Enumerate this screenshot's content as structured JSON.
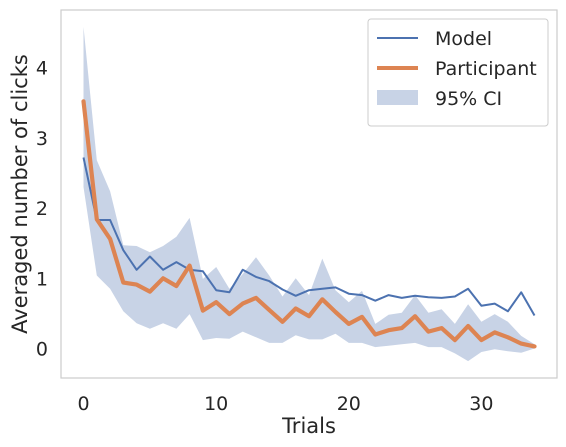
{
  "chart_data": {
    "type": "line",
    "xlabel": "Trials",
    "ylabel": "Averaged number of clicks",
    "xlim": [
      -1.7,
      35.7
    ],
    "ylim": [
      -0.42,
      4.82
    ],
    "xticks": [
      0,
      10,
      20,
      30
    ],
    "yticks": [
      0,
      1,
      2,
      3,
      4
    ],
    "grid": false,
    "legend_position": "top-right",
    "x": [
      0,
      1,
      2,
      3,
      4,
      5,
      6,
      7,
      8,
      9,
      10,
      11,
      12,
      13,
      14,
      15,
      16,
      17,
      18,
      19,
      20,
      21,
      22,
      23,
      24,
      25,
      26,
      27,
      28,
      29,
      30,
      31,
      32,
      33,
      34
    ],
    "series": [
      {
        "name": "Model",
        "type": "line",
        "color": "#4c72b0",
        "values": [
          2.72,
          1.83,
          1.83,
          1.4,
          1.12,
          1.31,
          1.12,
          1.23,
          1.12,
          1.1,
          0.83,
          0.8,
          1.12,
          1.02,
          0.96,
          0.84,
          0.75,
          0.83,
          0.85,
          0.87,
          0.78,
          0.76,
          0.68,
          0.76,
          0.72,
          0.75,
          0.73,
          0.72,
          0.74,
          0.85,
          0.61,
          0.64,
          0.53,
          0.8,
          0.47
        ]
      },
      {
        "name": "Participant",
        "type": "line",
        "color": "#dd8452",
        "values": [
          3.52,
          1.84,
          1.56,
          0.94,
          0.91,
          0.81,
          1.0,
          0.89,
          1.18,
          0.54,
          0.66,
          0.49,
          0.64,
          0.72,
          0.55,
          0.38,
          0.57,
          0.46,
          0.7,
          0.52,
          0.35,
          0.45,
          0.2,
          0.26,
          0.29,
          0.46,
          0.24,
          0.29,
          0.12,
          0.32,
          0.12,
          0.23,
          0.16,
          0.07,
          0.03
        ]
      },
      {
        "name": "95% CI",
        "type": "band",
        "color": "#c8d3e6",
        "upper": [
          4.58,
          2.68,
          2.24,
          1.47,
          1.46,
          1.37,
          1.46,
          1.59,
          1.86,
          0.99,
          1.16,
          0.85,
          1.06,
          1.3,
          1.04,
          0.74,
          1.0,
          0.76,
          1.28,
          0.83,
          0.66,
          0.82,
          0.35,
          0.48,
          0.51,
          0.76,
          0.51,
          0.56,
          0.35,
          0.63,
          0.38,
          0.49,
          0.38,
          0.18,
          0.06
        ],
        "lower": [
          2.3,
          1.04,
          0.85,
          0.53,
          0.36,
          0.28,
          0.36,
          0.28,
          0.49,
          0.12,
          0.15,
          0.14,
          0.24,
          0.16,
          0.08,
          0.08,
          0.19,
          0.13,
          0.13,
          0.21,
          0.08,
          0.08,
          0.02,
          0.04,
          0.06,
          0.08,
          0.02,
          0.02,
          -0.07,
          -0.18,
          -0.05,
          -0.01,
          -0.04,
          -0.06,
          0.0
        ]
      }
    ]
  }
}
